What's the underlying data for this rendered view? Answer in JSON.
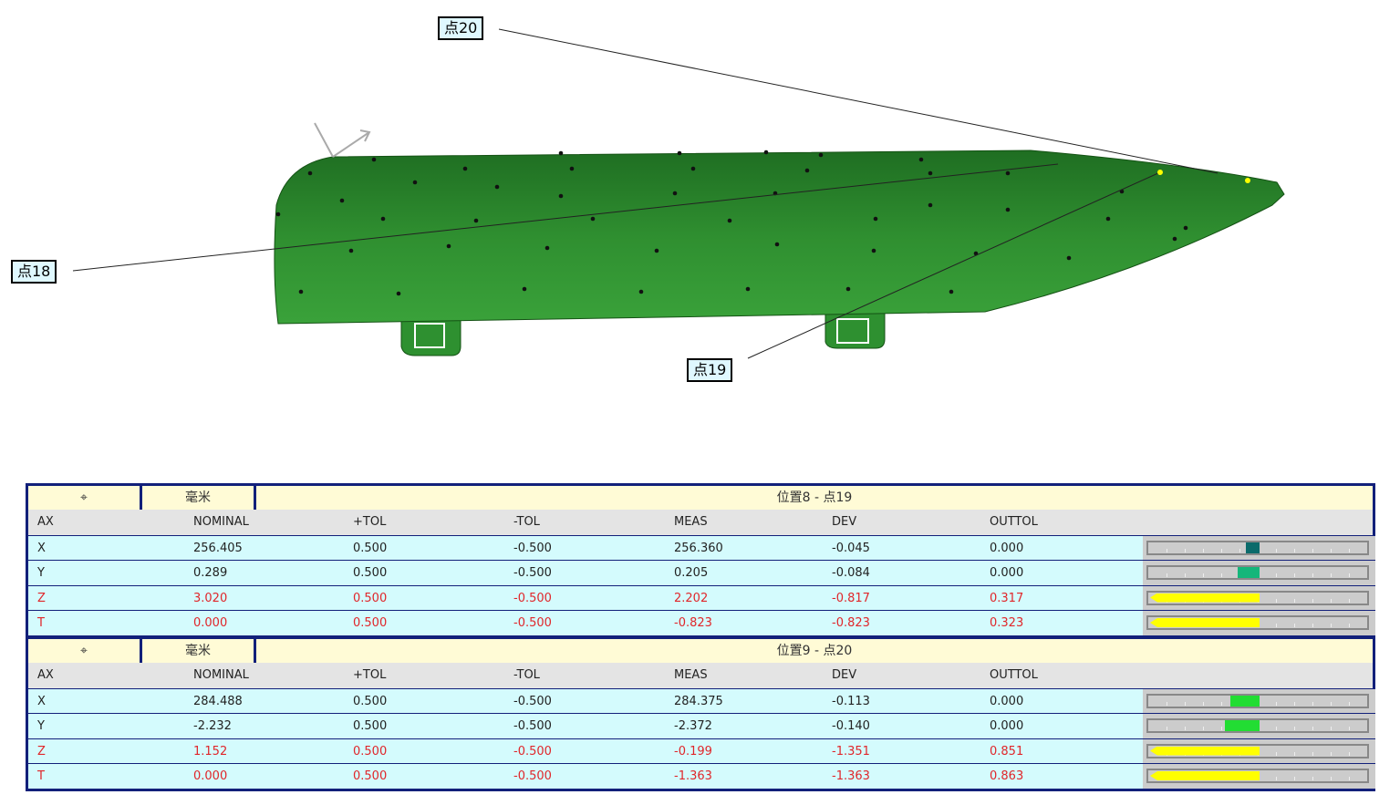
{
  "view": {
    "part_color": "#2e8b2e",
    "labels": [
      {
        "text": "点20"
      },
      {
        "text": "点18"
      },
      {
        "text": "点19"
      }
    ]
  },
  "blocks": [
    {
      "icon": "位置符号",
      "icon_text": "⌖",
      "units": "毫米",
      "title": "位置8 - 点19",
      "columns": [
        "AX",
        "NOMINAL",
        "+TOL",
        "-TOL",
        "MEAS",
        "DEV",
        "OUTTOL"
      ],
      "rows": [
        {
          "ax": "X",
          "nominal": "256.405",
          "ptol": "0.500",
          "mtol": "-0.500",
          "meas": "256.360",
          "dev": "-0.045",
          "outtol": "0.000",
          "out": false,
          "marker_color": "#0b6b6b"
        },
        {
          "ax": "Y",
          "nominal": "0.289",
          "ptol": "0.500",
          "mtol": "-0.500",
          "meas": "0.205",
          "dev": "-0.084",
          "outtol": "0.000",
          "out": false,
          "marker_color": "#14b67a"
        },
        {
          "ax": "Z",
          "nominal": "3.020",
          "ptol": "0.500",
          "mtol": "-0.500",
          "meas": "2.202",
          "dev": "-0.817",
          "outtol": "0.317",
          "out": true,
          "marker_color": "#ffff00"
        },
        {
          "ax": "T",
          "nominal": "0.000",
          "ptol": "0.500",
          "mtol": "-0.500",
          "meas": "-0.823",
          "dev": "-0.823",
          "outtol": "0.323",
          "out": true,
          "marker_color": "#ffff00"
        }
      ]
    },
    {
      "icon": "位置符号",
      "icon_text": "⌖",
      "units": "毫米",
      "title": "位置9 - 点20",
      "columns": [
        "AX",
        "NOMINAL",
        "+TOL",
        "-TOL",
        "MEAS",
        "DEV",
        "OUTTOL"
      ],
      "rows": [
        {
          "ax": "X",
          "nominal": "284.488",
          "ptol": "0.500",
          "mtol": "-0.500",
          "meas": "284.375",
          "dev": "-0.113",
          "outtol": "0.000",
          "out": false,
          "marker_color": "#22dd33"
        },
        {
          "ax": "Y",
          "nominal": "-2.232",
          "ptol": "0.500",
          "mtol": "-0.500",
          "meas": "-2.372",
          "dev": "-0.140",
          "outtol": "0.000",
          "out": false,
          "marker_color": "#22dd33"
        },
        {
          "ax": "Z",
          "nominal": "1.152",
          "ptol": "0.500",
          "mtol": "-0.500",
          "meas": "-0.199",
          "dev": "-1.351",
          "outtol": "0.851",
          "out": true,
          "marker_color": "#ffff00"
        },
        {
          "ax": "T",
          "nominal": "0.000",
          "ptol": "0.500",
          "mtol": "-0.500",
          "meas": "-1.363",
          "dev": "-1.363",
          "outtol": "0.863",
          "out": true,
          "marker_color": "#ffff00"
        }
      ]
    }
  ]
}
